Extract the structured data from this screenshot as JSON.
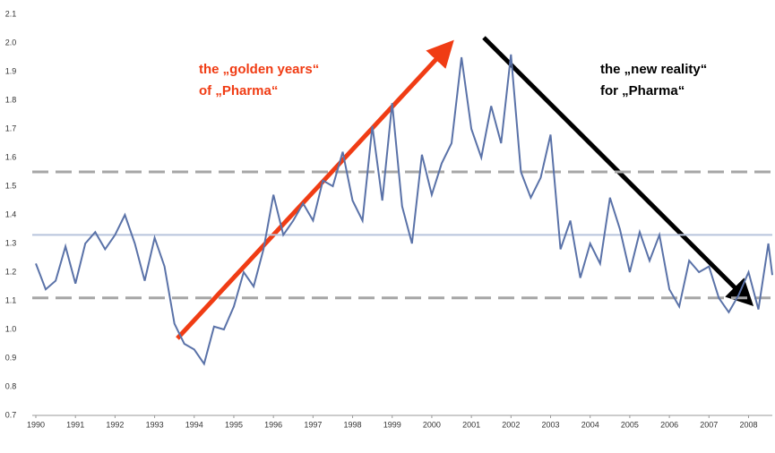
{
  "chart_data": {
    "type": "line",
    "x": [
      1990,
      1990.25,
      1990.5,
      1990.75,
      1991,
      1991.25,
      1991.5,
      1991.75,
      1992,
      1992.25,
      1992.5,
      1992.75,
      1993,
      1993.25,
      1993.5,
      1993.75,
      1994,
      1994.25,
      1994.5,
      1994.75,
      1995,
      1995.25,
      1995.5,
      1995.75,
      1996,
      1996.25,
      1996.5,
      1996.75,
      1997,
      1997.25,
      1997.5,
      1997.75,
      1998,
      1998.25,
      1998.5,
      1998.75,
      1999,
      1999.25,
      1999.5,
      1999.75,
      2000,
      2000.25,
      2000.5,
      2000.75,
      2001,
      2001.25,
      2001.5,
      2001.75,
      2002,
      2002.25,
      2002.5,
      2002.75,
      2003,
      2003.25,
      2003.5,
      2003.75,
      2004,
      2004.25,
      2004.5,
      2004.75,
      2005,
      2005.25,
      2005.5,
      2005.75,
      2006,
      2006.25,
      2006.5,
      2006.75,
      2007,
      2007.25,
      2007.5,
      2007.75,
      2008,
      2008.25,
      2008.5,
      2008.6
    ],
    "series": [
      {
        "color": "#5a72a8",
        "values": [
          1.23,
          1.14,
          1.17,
          1.29,
          1.16,
          1.3,
          1.34,
          1.28,
          1.33,
          1.4,
          1.3,
          1.17,
          1.32,
          1.22,
          1.02,
          0.95,
          0.93,
          0.88,
          1.01,
          1.0,
          1.08,
          1.2,
          1.15,
          1.28,
          1.47,
          1.33,
          1.38,
          1.44,
          1.38,
          1.52,
          1.5,
          1.62,
          1.45,
          1.38,
          1.71,
          1.45,
          1.79,
          1.43,
          1.3,
          1.61,
          1.47,
          1.58,
          1.65,
          1.95,
          1.7,
          1.6,
          1.78,
          1.65,
          1.96,
          1.55,
          1.46,
          1.53,
          1.68,
          1.28,
          1.38,
          1.18,
          1.3,
          1.23,
          1.46,
          1.35,
          1.2,
          1.34,
          1.24,
          1.33,
          1.14,
          1.08,
          1.24,
          1.2,
          1.22,
          1.11,
          1.06,
          1.12,
          1.2,
          1.07,
          1.3,
          1.19
        ]
      }
    ],
    "xlim": [
      1990,
      2008.6
    ],
    "ylim": [
      0.7,
      2.1
    ],
    "xticks": [
      1990,
      1991,
      1992,
      1993,
      1994,
      1995,
      1996,
      1997,
      1998,
      1999,
      2000,
      2001,
      2002,
      2003,
      2004,
      2005,
      2006,
      2007,
      2008
    ],
    "yticks": [
      {
        "value": 0.7,
        "label": "0.7"
      },
      {
        "value": 0.8,
        "label": "0.8"
      },
      {
        "value": 0.9,
        "label": "0.9"
      },
      {
        "value": 1.0,
        "label": "1.0"
      },
      {
        "value": 1.1,
        "label": "1.1"
      },
      {
        "value": 1.2,
        "label": "1.2"
      },
      {
        "value": 1.3,
        "label": "1.3"
      },
      {
        "value": 1.4,
        "label": "1.4"
      },
      {
        "value": 1.5,
        "label": "1.5"
      },
      {
        "value": 1.6,
        "label": "1.6"
      },
      {
        "value": 1.7,
        "label": "1.7"
      },
      {
        "value": 1.8,
        "label": "1.8"
      },
      {
        "value": 1.9,
        "label": "1.9"
      },
      {
        "value": 2.0,
        "label": "2.0"
      },
      {
        "value": 2.1,
        "label": "2.1"
      }
    ],
    "reference_lines": [
      {
        "value": 1.55,
        "color": "#a6a6a6",
        "dashed": true
      },
      {
        "value": 1.33,
        "color": "#b8c4dc",
        "dashed": false
      },
      {
        "value": 1.11,
        "color": "#a6a6a6",
        "dashed": true
      }
    ],
    "annotations": [
      {
        "lines": [
          "the „golden years“",
          "of  „Pharma“"
        ],
        "color": "#f03c14"
      },
      {
        "lines": [
          "the „new reality“",
          "for „Pharma“"
        ],
        "color": "#000000"
      }
    ]
  }
}
